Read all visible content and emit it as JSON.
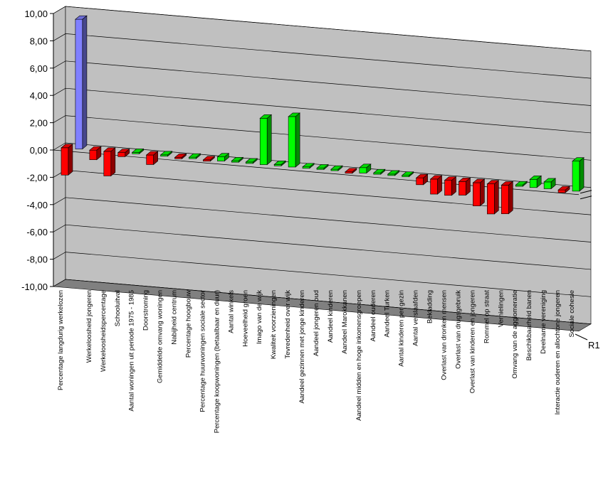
{
  "chart_data": {
    "type": "bar",
    "categories": [
      "Percentage langdurig werkelozen",
      null,
      "Werkeloosheid jongeren",
      "Werkeloosheidspercentage",
      "Schooluitval",
      "Aantal woningen uit periode 1975 - 1985",
      "Doorstroming",
      "Gemiddelde omvang woningen",
      "Nabijheid centrum",
      "Percentage hoogbouw",
      "Percentage huurwoningen sociale sector",
      "Percentage koopwoningen (betaalbaar en duur)",
      "Aantal winkels",
      "Hoeveelheid groen",
      "Imago van de wijk",
      "Kwaliteit voorzieningen",
      "Tevredenheid over wijk",
      "Aandeel gezinnen met jonge kinderen",
      "Aandeel jongeren oud",
      "Aandeel kinderen",
      "Aandeel Marokkanen",
      "Aandeel midden en hoge inkomensgroepen",
      "Aandeel ouderen",
      "Aandeel Turken",
      "Aantal kinderen per gezin",
      "Aantal verslaafden",
      "Bekladding",
      "Overlast van dronken mensen",
      "Overlast van drugsgebruik",
      "Overlast van kinderen en jongeren",
      "Rommel op straat",
      "Vernielingen",
      "Omvang van de agglomeratie",
      "Beschikbaarheid banen",
      "Deelname vereniging",
      "Interactie ouderen en allochtone jongeren",
      "Sociale cohesie"
    ],
    "series": [
      {
        "name": "R1",
        "values": [
          -2.0,
          9.5,
          -0.7,
          -1.8,
          -0.3,
          0.1,
          -0.7,
          0.1,
          -0.1,
          0.1,
          -0.1,
          0.3,
          0.1,
          0.1,
          3.4,
          0.1,
          3.7,
          0.1,
          0.1,
          0.1,
          -0.1,
          0.4,
          0.1,
          0.1,
          0.1,
          -0.5,
          -1.1,
          -1.1,
          -1.0,
          -1.7,
          -2.2,
          -2.1,
          0.1,
          0.6,
          0.5,
          -0.2,
          2.2
        ],
        "colors": [
          "#ff0000",
          "#8080ff",
          "#ff0000",
          "#ff0000",
          "#ff0000",
          "#00ff00",
          "#ff0000",
          "#00ff00",
          "#ff0000",
          "#00ff00",
          "#ff0000",
          "#00ff00",
          "#00ff00",
          "#00ff00",
          "#00ff00",
          "#00ff00",
          "#00ff00",
          "#00ff00",
          "#00ff00",
          "#00ff00",
          "#ff0000",
          "#00ff00",
          "#00ff00",
          "#00ff00",
          "#00ff00",
          "#ff0000",
          "#ff0000",
          "#ff0000",
          "#ff0000",
          "#ff0000",
          "#ff0000",
          "#ff0000",
          "#00ff00",
          "#00ff00",
          "#00ff00",
          "#ff0000",
          "#00ff00"
        ]
      }
    ],
    "ylim": [
      -10,
      10
    ],
    "yticks": [
      {
        "value": -10,
        "label": "-10,00"
      },
      {
        "value": -8,
        "label": "-8,00"
      },
      {
        "value": -6,
        "label": "-6,00"
      },
      {
        "value": -4,
        "label": "-4,00"
      },
      {
        "value": -2,
        "label": "-2,00"
      },
      {
        "value": 0,
        "label": "0,00"
      },
      {
        "value": 2,
        "label": "2,00"
      },
      {
        "value": 4,
        "label": "4,00"
      },
      {
        "value": 6,
        "label": "6,00"
      },
      {
        "value": 8,
        "label": "8,00"
      },
      {
        "value": 10,
        "label": "10,00"
      }
    ],
    "grid": true
  }
}
